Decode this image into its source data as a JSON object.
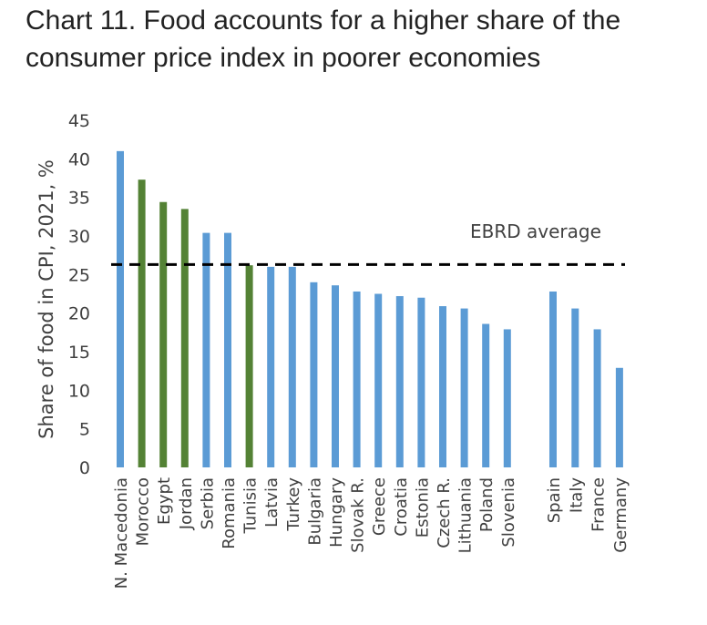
{
  "title_lines": [
    "Chart 11. Food accounts for a higher share of the",
    "consumer price index in poorer economies"
  ],
  "colors": {
    "blue": "#5b9bd5",
    "green": "#548235",
    "average_line": "#000000"
  },
  "chart_data": {
    "type": "bar",
    "ylabel": "Share of food in CPI, 2021, %",
    "ylim": [
      0,
      45
    ],
    "yticks": [
      0,
      5,
      10,
      15,
      20,
      25,
      30,
      35,
      40,
      45
    ],
    "grid": false,
    "average": {
      "label": "EBRD average",
      "value": 26.3
    },
    "categories": [
      "N. Macedonia",
      "Morocco",
      "Egypt",
      "Jordan",
      "Serbia",
      "Romania",
      "Tunisia",
      "Latvia",
      "Turkey",
      "Bulgaria",
      "Hungary",
      "Slovak R.",
      "Greece",
      "Croatia",
      "Estonia",
      "Czech R.",
      "Lithuania",
      "Poland",
      "Slovenia",
      "Spain",
      "Italy",
      "France",
      "Germany"
    ],
    "values": [
      41.0,
      37.3,
      34.4,
      33.5,
      30.4,
      30.4,
      26.2,
      26.0,
      26.0,
      24.0,
      23.6,
      22.8,
      22.5,
      22.2,
      22.0,
      20.9,
      20.6,
      18.6,
      17.9,
      22.8,
      20.6,
      17.9,
      12.9
    ],
    "bar_colors": [
      "blue",
      "green",
      "green",
      "green",
      "blue",
      "blue",
      "green",
      "blue",
      "blue",
      "blue",
      "blue",
      "blue",
      "blue",
      "blue",
      "blue",
      "blue",
      "blue",
      "blue",
      "blue",
      "blue",
      "blue",
      "blue",
      "blue"
    ]
  }
}
